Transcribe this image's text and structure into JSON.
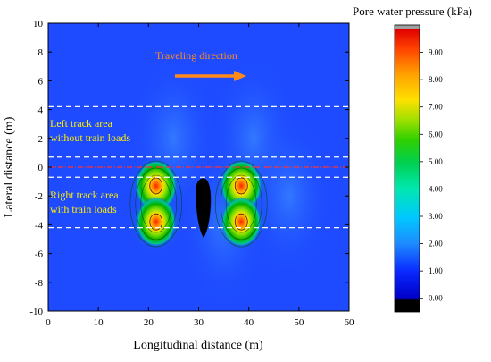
{
  "chart_data": {
    "type": "heatmap",
    "title": "",
    "xlabel": "Longitudinal distance (m)",
    "ylabel": "Lateral distance (m)",
    "xlim": [
      0,
      60
    ],
    "ylim": [
      -10,
      10
    ],
    "x_ticks": [
      "0",
      "10",
      "20",
      "30",
      "40",
      "50",
      "60"
    ],
    "y_ticks": [
      "-10",
      "-8",
      "-6",
      "-4",
      "-2",
      "0",
      "2",
      "4",
      "6",
      "8",
      "10"
    ],
    "colorbar": {
      "title": "Pore water pressure (kPa)",
      "min": -0.5,
      "max": 10,
      "tick_values": [
        0,
        1,
        2,
        3,
        4,
        5,
        6,
        7,
        8,
        9
      ],
      "tick_labels": [
        "0.00",
        "1.00",
        "2.00",
        "3.00",
        "4.00",
        "5.00",
        "6.00",
        "7.00",
        "8.00",
        "9.00"
      ]
    },
    "pressure_peaks": [
      {
        "x": 21.5,
        "y": -1.3,
        "value": 9.0
      },
      {
        "x": 21.5,
        "y": -3.8,
        "value": 8.0
      },
      {
        "x": 38.5,
        "y": -1.3,
        "value": 9.0
      },
      {
        "x": 38.5,
        "y": -3.8,
        "value": 8.0
      }
    ],
    "reference_lines": [
      {
        "y": 4.2,
        "style": "dashed",
        "color": "#ffffff"
      },
      {
        "y": 0.7,
        "style": "dashed",
        "color": "#ffffff"
      },
      {
        "y": 0.0,
        "style": "dash-dot",
        "color": "#ff3030"
      },
      {
        "y": -0.7,
        "style": "dashed",
        "color": "#ffffff"
      },
      {
        "y": -4.2,
        "style": "dashed",
        "color": "#ffffff"
      }
    ],
    "annotations": {
      "direction": "Traveling direction",
      "left_area_line1": "Left track area",
      "left_area_line2": "without train loads",
      "right_area_line1": "Right track area",
      "right_area_line2": "with train loads"
    },
    "colors": {
      "background": "#1e4bff",
      "direction_arrow": "#ff8a1a",
      "annotation_text": "#ffee00",
      "train_body": "#000000"
    }
  }
}
